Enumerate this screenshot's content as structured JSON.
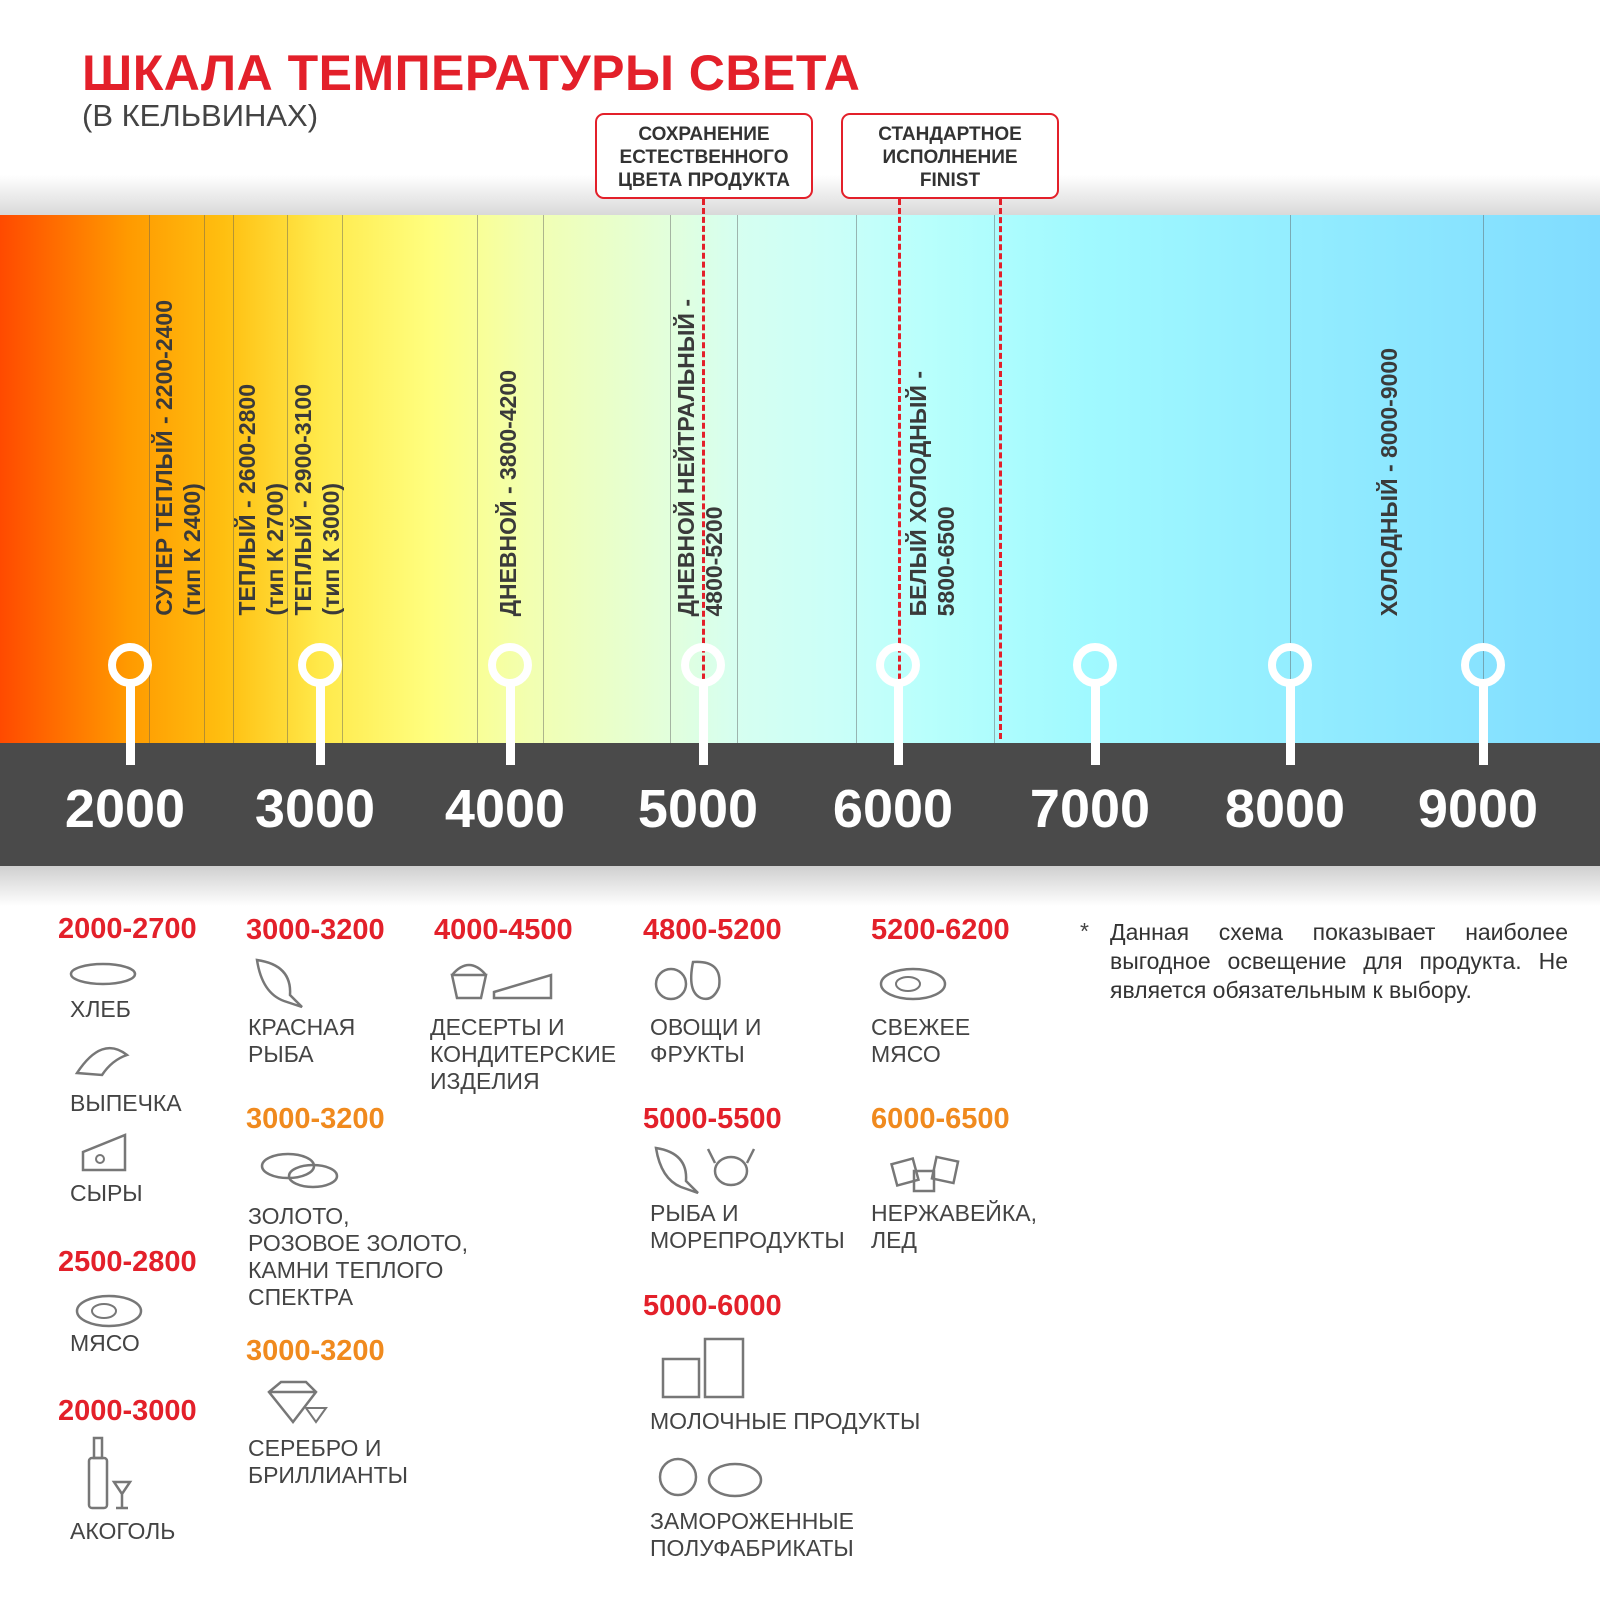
{
  "title": "ШКАЛА ТЕМПЕРАТУРЫ СВЕТА",
  "subtitle": "(В КЕЛЬВИНАХ)",
  "callouts": [
    {
      "lines": [
        "СОХРАНЕНИЕ",
        "ЕСТЕСТВЕННОГО",
        "ЦВЕТА ПРОДУКТА"
      ]
    },
    {
      "lines": [
        "СТАНДАРТНОЕ",
        "ИСПОЛНЕНИЕ",
        "FINIST"
      ]
    }
  ],
  "scale_ticks": [
    "2000",
    "3000",
    "4000",
    "5000",
    "6000",
    "7000",
    "8000",
    "9000"
  ],
  "bands": [
    {
      "line1": "СУПЕР ТЕПЛЫЙ - 2200-2400",
      "line2": "(тип К 2400)"
    },
    {
      "line1": "ТЕПЛЫЙ - 2600-2800",
      "line2": "(тип К 2700)"
    },
    {
      "line1": "ТЕПЛЫЙ - 2900-3100",
      "line2": "(тип К 3000)"
    },
    {
      "line1": "ДНЕВНОЙ - 3800-4200",
      "line2": ""
    },
    {
      "line1": "ДНЕВНОЙ НЕЙТРАЛЬНЫЙ -",
      "line2": "4800-5200"
    },
    {
      "line1": "БЕЛЫЙ ХОЛОДНЫЙ -",
      "line2": "5800-6500"
    },
    {
      "line1": "ХОЛОДНЫЙ - 8000-9000",
      "line2": ""
    }
  ],
  "colors": {
    "accent_red": "#e3202a",
    "accent_orange": "#f08a1e",
    "scale_bar": "#4a4a4a"
  },
  "products": {
    "r1": "2000-2700",
    "bread": "ХЛЕБ",
    "pastry": "ВЫПЕЧКА",
    "cheese": "СЫРЫ",
    "r2": "2500-2800",
    "meat": "МЯСО",
    "r3": "2000-3000",
    "alcohol": "АКОГОЛЬ",
    "r4": "3000-3200",
    "redfish": "КРАСНАЯ\nРЫБА",
    "r5": "3000-3200",
    "gold": "ЗОЛОТО,\nРОЗОВОЕ ЗОЛОТО,\nКАМНИ ТЕПЛОГО\nСПЕКТРА",
    "r6": "3000-3200",
    "silver": "СЕРЕБРО И\nБРИЛЛИАНТЫ",
    "r7": "4000-4500",
    "desserts": "ДЕСЕРТЫ И\nКОНДИТЕРСКИЕ\nИЗДЕЛИЯ",
    "r8": "4800-5200",
    "veg": "ОВОЩИ И\nФРУКТЫ",
    "r9": "5000-5500",
    "seafood": "РЫБА И\nМОРЕПРОДУКТЫ",
    "r10": "5000-6000",
    "dairy": "МОЛОЧНЫЕ ПРОДУКТЫ",
    "frozen": "ЗАМОРОЖЕННЫЕ\nПОЛУФАБРИКАТЫ",
    "r11": "5200-6200",
    "freshmeat": "СВЕЖЕЕ\nМЯСО",
    "r12": "6000-6500",
    "steel": "НЕРЖАВЕЙКА,\nЛЕД"
  },
  "note_star": "*",
  "note": "Данная схема показывает наиболее выгодное освещение для продукта. Не является обязательным к выбору."
}
